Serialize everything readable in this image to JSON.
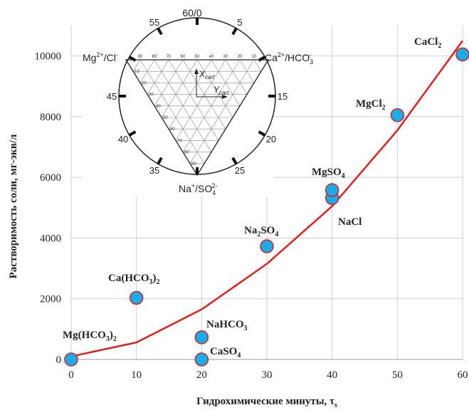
{
  "chart_data": {
    "type": "scatter",
    "xlabel": "Гидрохимические минуты, τ",
    "xlabel_sub": "s",
    "ylabel": "Растворимость соли, мг-экв/л",
    "xlim": [
      0,
      60
    ],
    "ylim": [
      0,
      11000
    ],
    "x_ticks": [
      0,
      10,
      20,
      30,
      40,
      50,
      60
    ],
    "y_ticks": [
      0,
      2000,
      4000,
      6000,
      8000,
      10000
    ],
    "grid": true,
    "marker_color": "#1aace8",
    "marker_edge": "#d62020",
    "curve_color": "#e0201e",
    "points": [
      {
        "x": 0,
        "y": 0,
        "label": [
          "Mg(HCO",
          "3",
          ")",
          "2"
        ]
      },
      {
        "x": 10,
        "y": 2030,
        "label": [
          "Ca(HCO",
          "3",
          ")",
          "2"
        ]
      },
      {
        "x": 20,
        "y": 730,
        "label": [
          "NaHCO",
          "3",
          "",
          ""
        ]
      },
      {
        "x": 20,
        "y": 0,
        "label": [
          "CaSO",
          "4",
          "",
          ""
        ]
      },
      {
        "x": 30,
        "y": 3730,
        "label": [
          "Na",
          "2",
          "SO",
          "4"
        ]
      },
      {
        "x": 40,
        "y": 5320,
        "label": [
          "NaCl",
          "",
          "",
          ""
        ]
      },
      {
        "x": 40,
        "y": 5580,
        "label": [
          "MgSO",
          "4",
          "",
          ""
        ]
      },
      {
        "x": 50,
        "y": 8050,
        "label": [
          "MgCl",
          "2",
          "",
          ""
        ]
      },
      {
        "x": 60,
        "y": 10050,
        "label": [
          "CaCl",
          "2",
          "",
          ""
        ]
      }
    ],
    "fit_curve": {
      "x": [
        0,
        10,
        20,
        30,
        40,
        50,
        60
      ],
      "y": [
        100,
        560,
        1650,
        3150,
        5050,
        7550,
        10500
      ]
    }
  },
  "inset": {
    "top_label": "60/0",
    "left_label": [
      "Mg",
      "2+",
      "/Cl",
      "-"
    ],
    "right_label": [
      "Ca",
      "2+",
      "/HCO",
      "3",
      "-"
    ],
    "bottom_label": [
      "Na",
      "+",
      "/SO",
      "4",
      "2-"
    ],
    "x_axis_label": [
      "X",
      "cart"
    ],
    "y_axis_label": [
      "Y",
      "cart"
    ],
    "dial_numbers": [
      "5",
      "15",
      "20",
      "25",
      "35",
      "40",
      "45",
      "55"
    ],
    "scale_numbers": [
      "10",
      "20",
      "30",
      "40",
      "50",
      "60",
      "70",
      "80",
      "90"
    ]
  }
}
